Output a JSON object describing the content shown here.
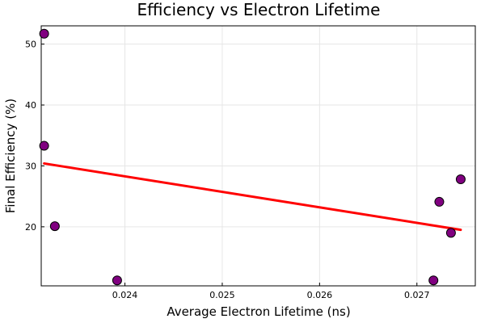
{
  "chart_data": {
    "type": "scatter",
    "title": "Efficiency vs Electron Lifetime",
    "xlabel": "Average Electron Lifetime (ns)",
    "ylabel": "Final Efficiency (%)",
    "xlim": [
      0.02314,
      0.0276
    ],
    "ylim": [
      10.3,
      53.0
    ],
    "xticks": [
      0.024,
      0.025,
      0.026,
      0.027
    ],
    "xtick_labels": [
      "0.024",
      "0.025",
      "0.026",
      "0.027"
    ],
    "yticks": [
      20,
      30,
      40,
      50
    ],
    "ytick_labels": [
      "20",
      "30",
      "40",
      "50"
    ],
    "grid": true,
    "legend": "none",
    "series": [
      {
        "kind": "scatter",
        "color": "#800080",
        "points": [
          {
            "x": 0.02317,
            "y": 51.7
          },
          {
            "x": 0.02317,
            "y": 33.3
          },
          {
            "x": 0.02328,
            "y": 20.1
          },
          {
            "x": 0.02392,
            "y": 11.2
          },
          {
            "x": 0.02717,
            "y": 11.2
          },
          {
            "x": 0.02723,
            "y": 24.1
          },
          {
            "x": 0.02735,
            "y": 19.0
          },
          {
            "x": 0.02745,
            "y": 27.8
          }
        ]
      },
      {
        "kind": "fit-line",
        "color": "#ff0000",
        "points": [
          {
            "x": 0.02317,
            "y": 30.4
          },
          {
            "x": 0.02745,
            "y": 19.5
          }
        ]
      }
    ]
  }
}
